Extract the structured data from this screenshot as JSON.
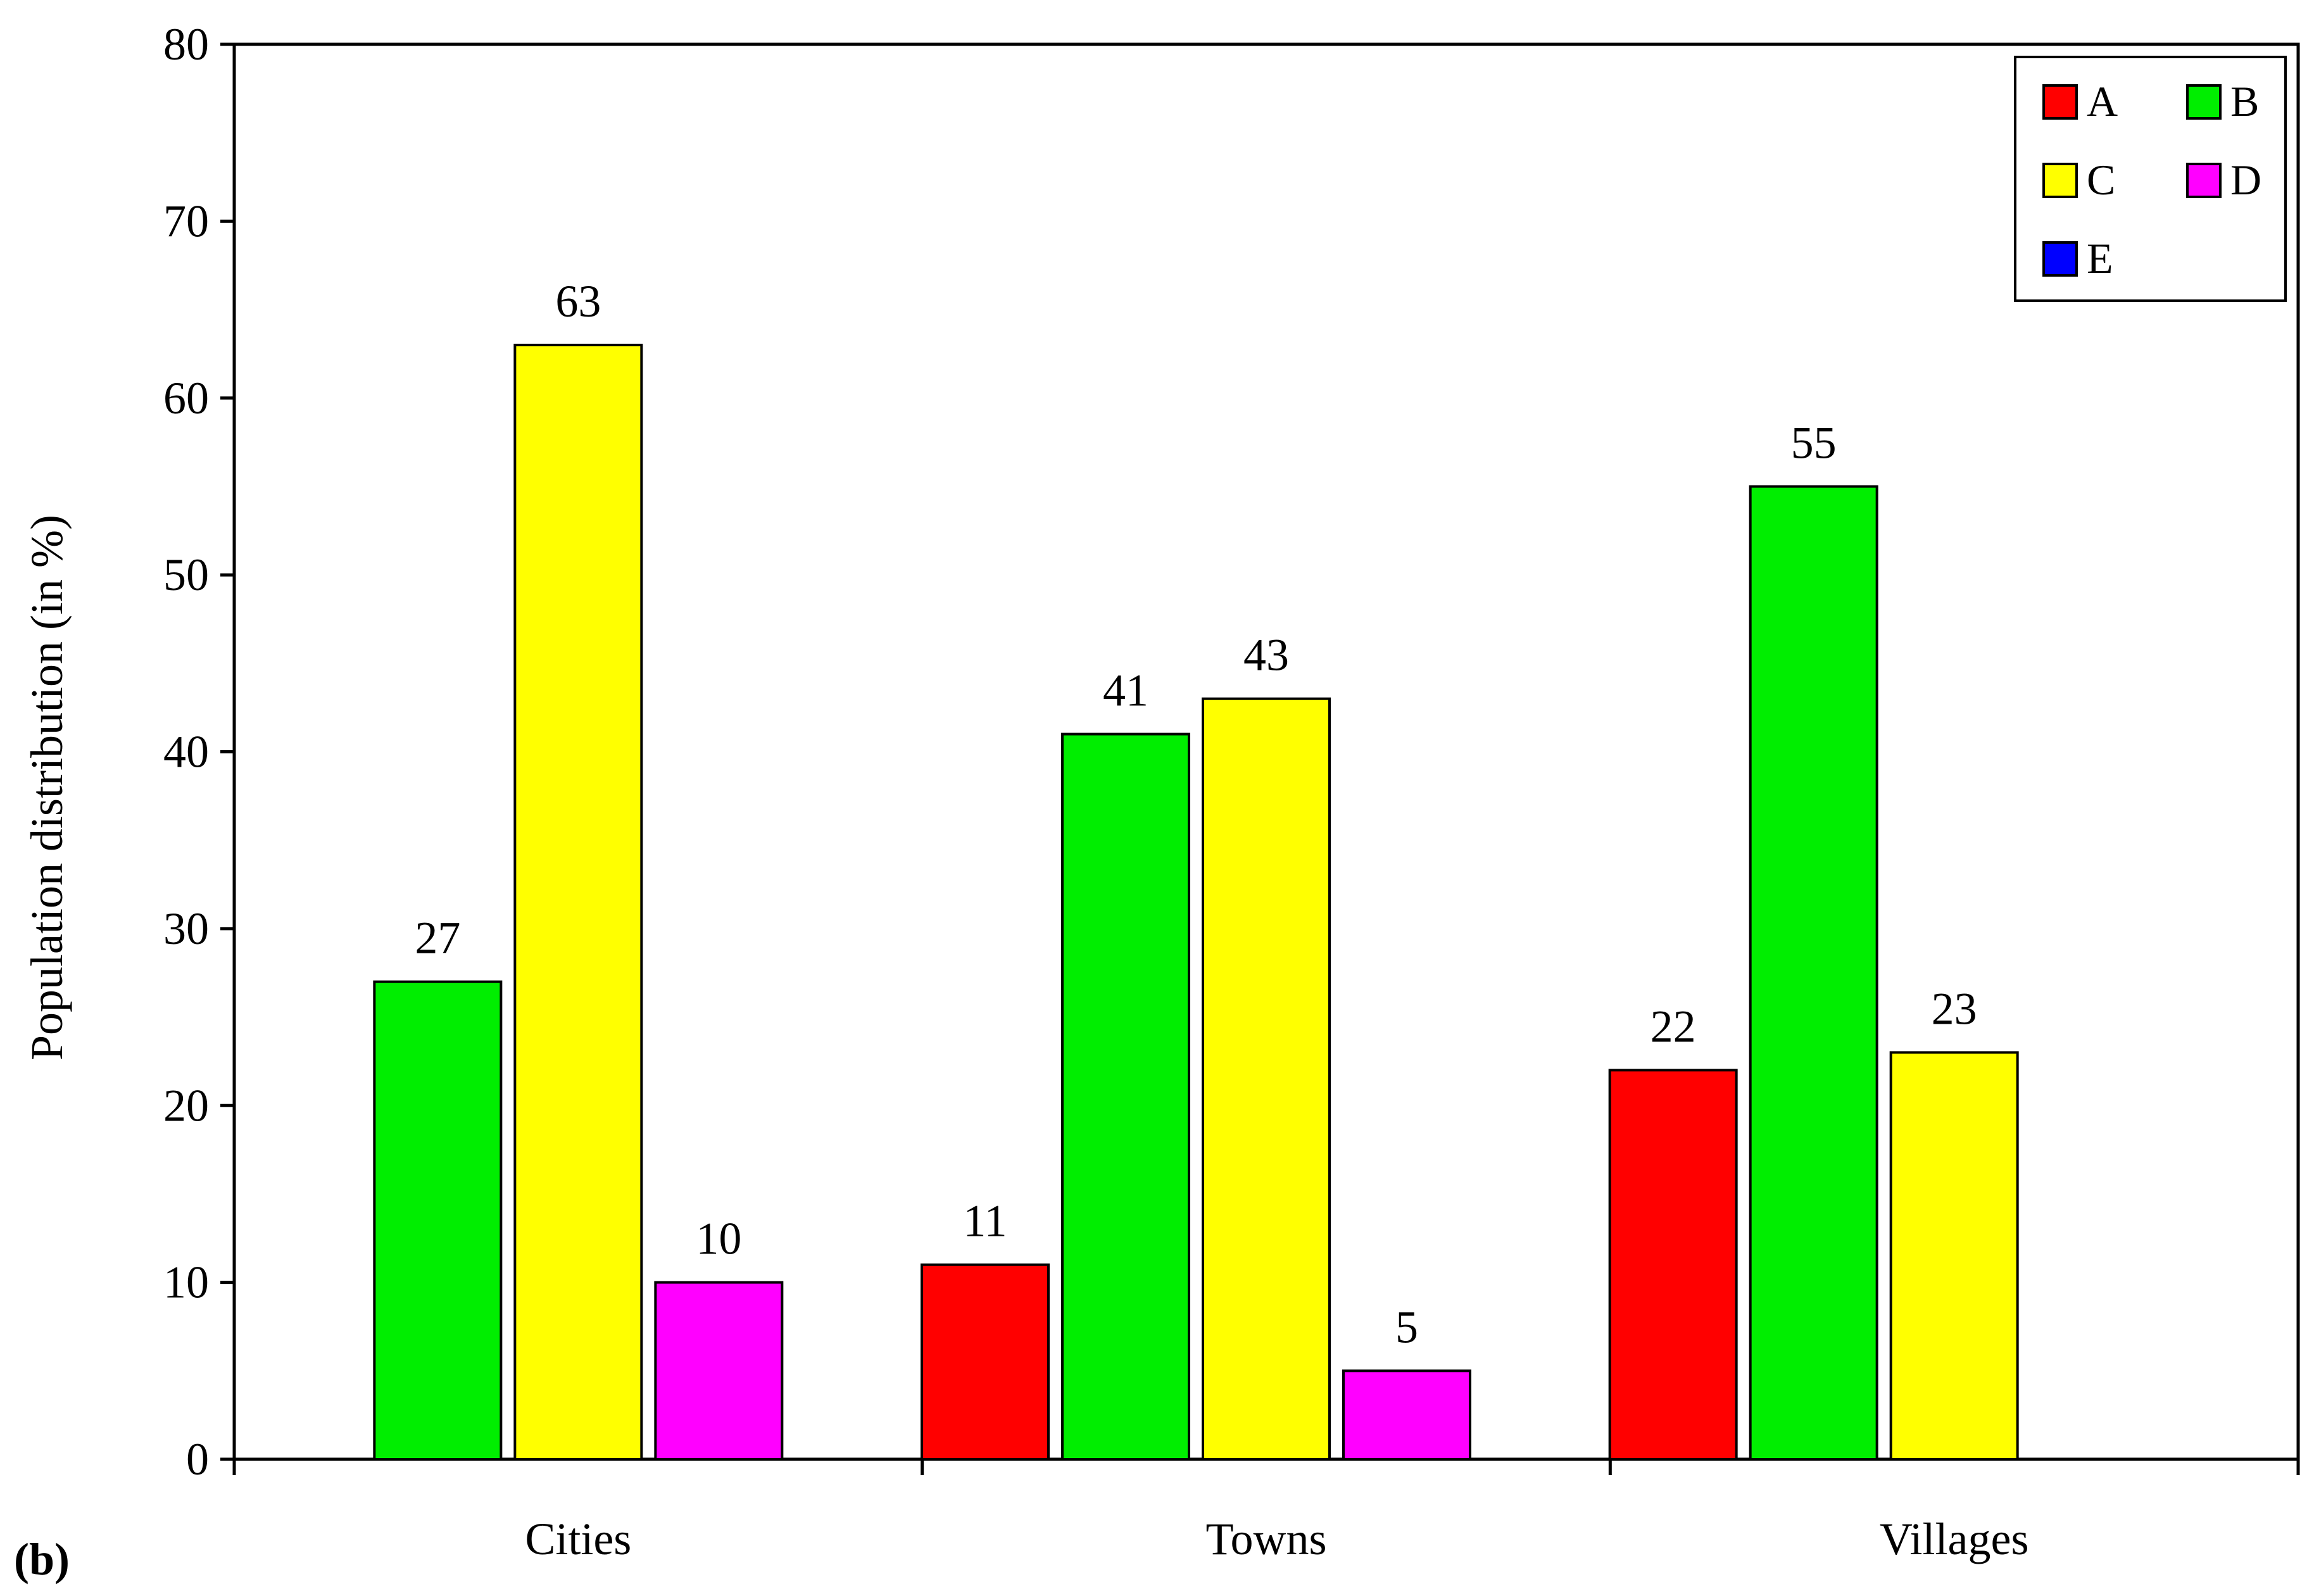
{
  "panel_label": "(b)",
  "chart_data": {
    "type": "bar",
    "title": "",
    "xlabel": "",
    "ylabel": "Population distribution (in %)",
    "ylim": [
      0,
      80
    ],
    "yticks": [
      0,
      10,
      20,
      30,
      40,
      50,
      60,
      70,
      80
    ],
    "categories": [
      "Cities",
      "Towns",
      "Villages"
    ],
    "legend_position": "top-right",
    "grid": false,
    "series": [
      {
        "name": "A",
        "color": "#ff0000",
        "values": [
          null,
          11,
          22
        ]
      },
      {
        "name": "B",
        "color": "#00ee00",
        "values": [
          27,
          41,
          55
        ]
      },
      {
        "name": "C",
        "color": "#ffff00",
        "values": [
          63,
          43,
          23
        ]
      },
      {
        "name": "D",
        "color": "#ff00ff",
        "values": [
          10,
          5,
          null
        ]
      },
      {
        "name": "E",
        "color": "#0000ff",
        "values": [
          null,
          null,
          null
        ]
      }
    ]
  }
}
